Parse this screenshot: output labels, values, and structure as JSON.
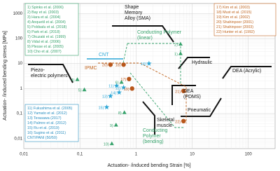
{
  "chart_data": {
    "type": "scatter",
    "xlabel": "Actuation- /induced bending Strain [%]",
    "ylabel": "Actuation- /induced bending stress [MPa]",
    "xlog": true,
    "ylog": true,
    "grid": true,
    "xlim": [
      0.01,
      300
    ],
    "ylim": [
      0.004,
      2500
    ],
    "xticks": [
      {
        "value": 0.01,
        "label": "0,01"
      },
      {
        "value": 0.1,
        "label": "0,1"
      },
      1,
      10,
      100
    ],
    "yticks": [
      {
        "value": 0.01,
        "label": "0,01"
      },
      {
        "value": 0.1,
        "label": "0,1"
      },
      1,
      10,
      100,
      1000
    ],
    "series": [
      {
        "marker": "triangle",
        "color": "#36a26b",
        "x": [
          6.2,
          6.2,
          0.09,
          0.12,
          0.55,
          0.62,
          0.44,
          0.37
        ],
        "values": [
          25,
          60,
          2.3,
          0.9,
          1.8,
          0.11,
          0.035,
          0.0063
        ],
        "labels": [
          "1)",
          "2)",
          "4)",
          "5)",
          "6)",
          "8)",
          "9)",
          "10)"
        ]
      },
      {
        "marker": "circle",
        "color": "#b8561a",
        "x": [
          0.75,
          0.6,
          0.85,
          0.35,
          7,
          7
        ],
        "values": [
          2.4,
          9,
          1.0,
          9,
          0.8,
          0.05
        ],
        "labels": [
          "17)",
          "18)",
          "19)",
          "20)",
          "21)",
          "22)"
        ]
      },
      {
        "marker": "star",
        "color": "#2aa6d6",
        "x": [
          0.45,
          0.6,
          0.35,
          0.5,
          0.3,
          1.7
        ],
        "values": [
          1.3,
          1.1,
          0.5,
          0.7,
          0.18,
          10
        ],
        "labels": [
          "11)",
          "12)",
          "13)",
          "14)",
          "15)",
          "16)"
        ]
      }
    ],
    "legends": [
      {
        "color": "#36a26b",
        "entries": [
          "1)  Spinks et al. (2006)",
          "2)  Bay et al. (2003)",
          "3)  Hara et al. (2004)",
          "4)  Anquetil et al. (2004)",
          "5)  Poldsalu et al. (2018)",
          "6)  Park et al. (2018)",
          "7)  Okuzaki et al. (1999)",
          "8)  Vidal et al. (2006)",
          "9)  Plesse et al. (2005)",
          "10) Cho et al. (2007)"
        ]
      },
      {
        "color": "#c0651f",
        "entries": [
          "17) Kim et al. (2003)",
          "18) Must et al. (2015)",
          "19) Kim et al. (2002)",
          "20) Shahinpoor (2001)",
          "21) Shahinpoor (2003)",
          "22) Hunter et al. (1992)"
        ]
      },
      {
        "color": "#2a8fc0",
        "entries": [
          "11) Fukushima et al. (2005)",
          "12) Yamato et al. (2012)",
          "13) Terasawa (2017)",
          "14) Palmre et al. (2012)",
          "15) Ru et al. (2019)",
          "16) Sugino et al. (2011)",
          "CNT/PANI (50/50)"
        ]
      }
    ],
    "annotations": [
      {
        "lines": [
          "Shape",
          "Memory",
          "Alloy (SMA)"
        ],
        "color": "#111"
      },
      {
        "lines": [
          "Conducting Polymer",
          "(linear)"
        ],
        "color": "#36a26b"
      },
      {
        "lines": [
          "CNT"
        ],
        "color": "#2aa6d6"
      },
      {
        "lines": [
          "IPMC"
        ],
        "color": "#c0651f"
      },
      {
        "lines": [
          "Hydraulic"
        ],
        "color": "#111"
      },
      {
        "lines": [
          "DEA (Acrylic)"
        ],
        "color": "#111"
      },
      {
        "lines": [
          "Piezo-",
          "electric polymers"
        ],
        "color": "#111"
      },
      {
        "lines": [
          "DEA",
          "(PDMS)"
        ],
        "color": "#111"
      },
      {
        "lines": [
          "Pneumatic"
        ],
        "color": "#111"
      },
      {
        "lines": [
          "Skeletal",
          "muscle"
        ],
        "color": "#111"
      },
      {
        "lines": [
          "Conducting",
          "Polymer",
          "(bending)"
        ],
        "color": "#36a26b"
      }
    ]
  }
}
